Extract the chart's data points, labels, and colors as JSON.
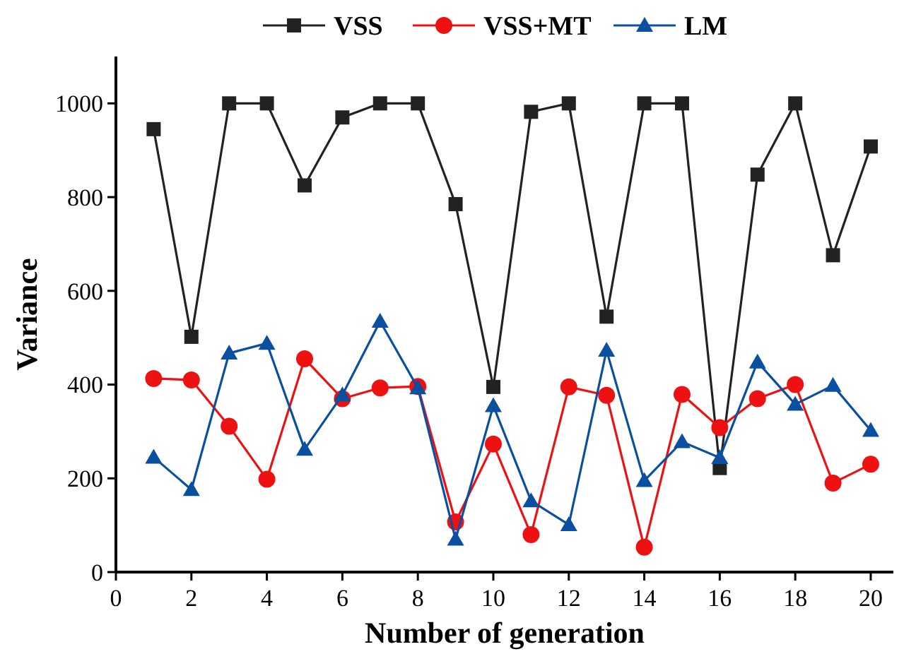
{
  "chart_data": {
    "type": "line",
    "xlabel": "Number of generation",
    "ylabel": "Variance",
    "x": [
      1,
      2,
      3,
      4,
      5,
      6,
      7,
      8,
      9,
      10,
      11,
      12,
      13,
      14,
      15,
      16,
      17,
      18,
      19,
      20
    ],
    "xlim": [
      0,
      20.6
    ],
    "xticks": [
      0,
      2,
      4,
      6,
      8,
      10,
      12,
      14,
      16,
      18,
      20
    ],
    "ylim": [
      0,
      1100
    ],
    "yticks": [
      0,
      200,
      400,
      600,
      800,
      1000
    ],
    "grid": false,
    "legend": "top",
    "line_style": "solid",
    "series": [
      {
        "name": "VSS",
        "color": "#222222",
        "marker": "square",
        "values": [
          945,
          502,
          1000,
          1000,
          825,
          970,
          1000,
          1000,
          785,
          395,
          982,
          1000,
          545,
          1000,
          1000,
          222,
          848,
          1000,
          676,
          908
        ]
      },
      {
        "name": "VSS+MT",
        "color": "#ee1111",
        "marker": "circle",
        "values": [
          413,
          410,
          311,
          198,
          455,
          370,
          393,
          396,
          107,
          273,
          80,
          395,
          377,
          53,
          379,
          308,
          370,
          400,
          190,
          230
        ]
      },
      {
        "name": "LM",
        "color": "#0a4fa0",
        "marker": "triangle",
        "values": [
          245,
          176,
          467,
          488,
          262,
          378,
          535,
          393,
          70,
          355,
          152,
          101,
          473,
          195,
          278,
          244,
          448,
          358,
          398,
          302
        ]
      }
    ]
  }
}
